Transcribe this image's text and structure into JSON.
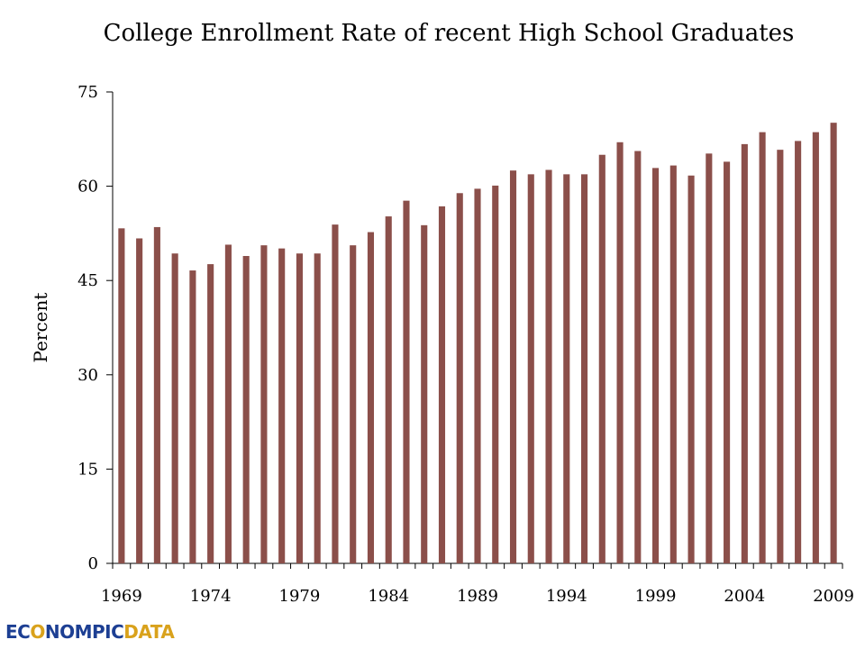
{
  "chart_data": {
    "type": "bar",
    "title": "College Enrollment Rate of recent High School Graduates",
    "ylabel": "Percent",
    "xlabel": "",
    "ylim": [
      0,
      75
    ],
    "yticks": [
      "0",
      "15",
      "30",
      "45",
      "60",
      "75"
    ],
    "xtick_labels": [
      "1969",
      "1974",
      "1979",
      "1984",
      "1989",
      "1994",
      "1999",
      "2004",
      "2009"
    ],
    "categories": [
      "1969",
      "1970",
      "1971",
      "1972",
      "1973",
      "1974",
      "1975",
      "1976",
      "1977",
      "1978",
      "1979",
      "1980",
      "1981",
      "1982",
      "1983",
      "1984",
      "1985",
      "1986",
      "1987",
      "1988",
      "1989",
      "1990",
      "1991",
      "1992",
      "1993",
      "1994",
      "1995",
      "1996",
      "1997",
      "1998",
      "1999",
      "2000",
      "2001",
      "2002",
      "2003",
      "2004",
      "2005",
      "2006",
      "2007",
      "2008",
      "2009"
    ],
    "values": [
      53.3,
      51.7,
      53.5,
      49.3,
      46.6,
      47.6,
      50.7,
      48.9,
      50.6,
      50.1,
      49.3,
      49.3,
      53.9,
      50.6,
      52.7,
      55.2,
      57.7,
      53.8,
      56.8,
      58.9,
      59.6,
      60.1,
      62.5,
      61.9,
      62.6,
      61.9,
      61.9,
      65.0,
      67.0,
      65.6,
      62.9,
      63.3,
      61.7,
      65.2,
      63.9,
      66.7,
      68.6,
      65.8,
      67.2,
      68.6,
      70.1
    ],
    "color": "#8b4f4a",
    "grid": false,
    "legend": "none"
  },
  "logo": {
    "part_a": "EC",
    "glyph": "O",
    "part_b": "NOMPIC",
    "part_c": "DATA"
  }
}
